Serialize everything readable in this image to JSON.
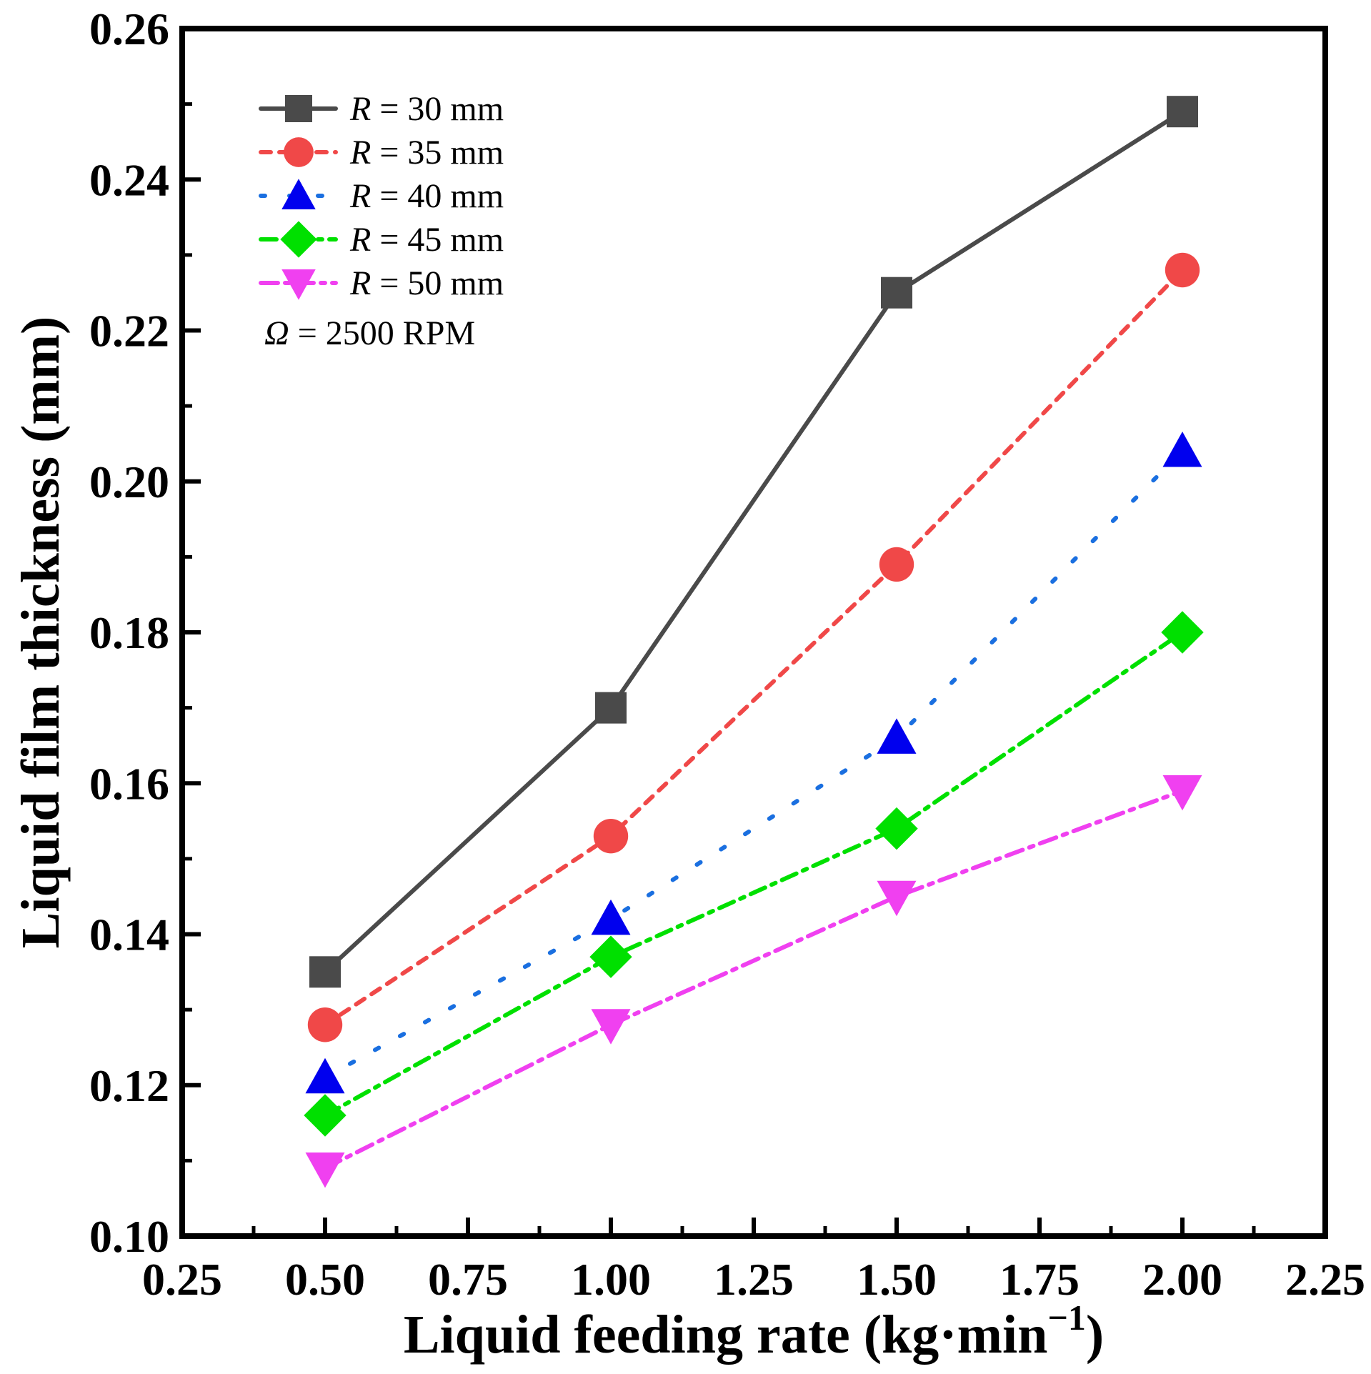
{
  "chart_data": {
    "type": "line",
    "title": "",
    "xlabel": "Liquid feeding rate (kg·min",
    "xlabel_sup": "−1",
    "xlabel_end": ")",
    "ylabel": "Liquid film thickness (mm)",
    "xlim": [
      0.25,
      2.25
    ],
    "ylim": [
      0.1,
      0.26
    ],
    "x_ticks": [
      "0.25",
      "0.50",
      "0.75",
      "1.00",
      "1.25",
      "1.50",
      "1.75",
      "2.00",
      "2.25"
    ],
    "y_ticks": [
      "0.10",
      "0.12",
      "0.14",
      "0.16",
      "0.18",
      "0.20",
      "0.22",
      "0.24",
      "0.26"
    ],
    "x": [
      0.5,
      1.0,
      1.5,
      2.0
    ],
    "series": [
      {
        "name": "R = 30 mm",
        "var": "R",
        "rest": " = 30 mm",
        "color": "#4a4a4a",
        "marker": "square",
        "dash": "",
        "values": [
          0.135,
          0.17,
          0.225,
          0.249
        ]
      },
      {
        "name": "R = 35 mm",
        "var": "R",
        "rest": " = 35 mm",
        "color": "#f04848",
        "marker": "circle",
        "dash": "14,12",
        "values": [
          0.128,
          0.153,
          0.189,
          0.228
        ]
      },
      {
        "name": "R = 40 mm",
        "var": "R",
        "rest": " = 40 mm",
        "color": "#1a6fe0",
        "marker": "triangle-up",
        "marker_color": "#0000ee",
        "dash": "6,34",
        "values": [
          0.121,
          0.142,
          0.166,
          0.204
        ]
      },
      {
        "name": "R = 45 mm",
        "var": "R",
        "rest": " = 45 mm",
        "color": "#00e000",
        "marker": "diamond",
        "dash": "22,10,6,10",
        "values": [
          0.116,
          0.137,
          0.154,
          0.18
        ]
      },
      {
        "name": "R = 50 mm",
        "var": "R",
        "rest": " = 50 mm",
        "color": "#f040f0",
        "marker": "triangle-down",
        "dash": "24,10,6,10",
        "values": [
          0.109,
          0.128,
          0.145,
          0.159
        ]
      }
    ],
    "annotation": {
      "var": "Ω",
      "rest": " = 2500 RPM"
    },
    "legend_position": "top-left"
  }
}
